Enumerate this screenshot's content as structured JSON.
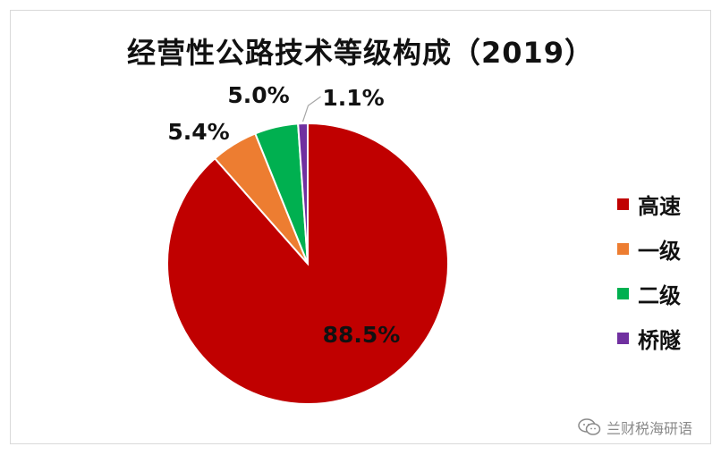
{
  "chart_data": {
    "type": "pie",
    "title": "经营性公路技术等级构成（2019）",
    "categories": [
      "高速",
      "一级",
      "二级",
      "桥隧"
    ],
    "values": [
      88.5,
      5.4,
      5.0,
      1.1
    ],
    "data_labels": [
      "88.5%",
      "5.4%",
      "5.0%",
      "1.1%"
    ],
    "colors": [
      "#c00000",
      "#ed7d31",
      "#00b050",
      "#7030a0"
    ],
    "legend_position": "right",
    "start_angle_deg": 0,
    "direction": "clockwise"
  },
  "watermark": {
    "text": "兰财税海研语",
    "icon": "wechat-icon"
  }
}
